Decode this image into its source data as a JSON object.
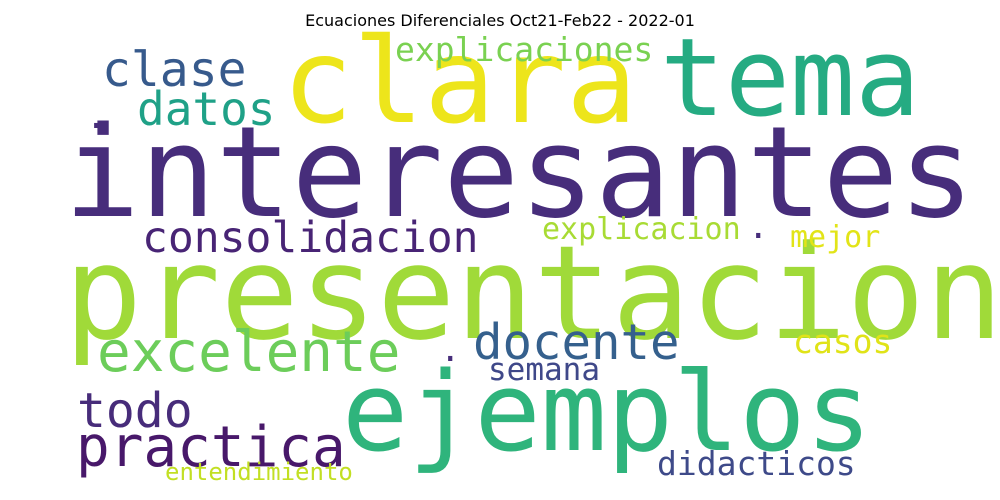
{
  "title": "Ecuaciones Diferenciales Oct21-Feb22 - 2022-01",
  "chart_data": {
    "type": "wordcloud",
    "words": [
      {
        "text": "interesantes",
        "color": "#472d7b"
      },
      {
        "text": "presentacion",
        "color": "#a0da39"
      },
      {
        "text": "clara",
        "color": "#ede51b"
      },
      {
        "text": "tema",
        "color": "#25ab82"
      },
      {
        "text": "ejemplos",
        "color": "#2fb47c"
      },
      {
        "text": "clase",
        "color": "#375a8c"
      },
      {
        "text": "explicaciones",
        "color": "#7ad151"
      },
      {
        "text": "datos",
        "color": "#1fa187"
      },
      {
        "text": "consolidacion",
        "color": "#482475"
      },
      {
        "text": "explicacion",
        "color": "#a8db34"
      },
      {
        "text": "mejor",
        "color": "#e2e418"
      },
      {
        "text": "excelente",
        "color": "#6ccd5a"
      },
      {
        "text": "docente",
        "color": "#35608d"
      },
      {
        "text": "casos",
        "color": "#e0e318"
      },
      {
        "text": "semana",
        "color": "#3f4889"
      },
      {
        "text": "todo",
        "color": "#472c7a"
      },
      {
        "text": "practica",
        "color": "#48186a"
      },
      {
        "text": "didacticos",
        "color": "#3e4a89"
      },
      {
        "text": "entendimiento",
        "color": "#c2df23"
      }
    ],
    "dot_color": "#472d7b"
  }
}
